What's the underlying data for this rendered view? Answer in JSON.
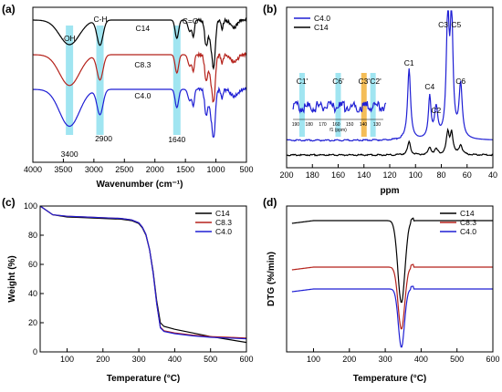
{
  "colors": {
    "C14": "#000000",
    "C8.3": "#b5221b",
    "C4.0": "#1f1fd4",
    "band": "#8fe0ee",
    "band_c3": "#f2b13a"
  },
  "chart_data": [
    {
      "panel": "(a)",
      "type": "line",
      "xlabel": "Wavenumber (cm⁻¹)",
      "ylabel": "",
      "xlim": [
        4000,
        500
      ],
      "xticks": [
        4000,
        3500,
        3000,
        2500,
        2000,
        1500,
        1000,
        500
      ],
      "series_labels": [
        {
          "name": "C14",
          "x": 2200
        },
        {
          "name": "C8.3",
          "x": 2200
        },
        {
          "name": "C4.0",
          "x": 2200
        }
      ],
      "bands": [
        {
          "center": 3400,
          "label": "-OH"
        },
        {
          "center": 2900,
          "label": "C-H"
        },
        {
          "center": 1640,
          "label": "C=O"
        }
      ],
      "peak_labels": [
        "3400",
        "2900",
        "1640"
      ],
      "peaks": [
        3400,
        2900,
        1640,
        1060
      ]
    },
    {
      "panel": "(b)",
      "type": "line",
      "xlabel": "ppm",
      "ylabel": "",
      "xlim": [
        200,
        40
      ],
      "xticks": [
        200,
        180,
        160,
        140,
        120,
        100,
        80,
        60,
        40
      ],
      "legend": [
        "C4.0",
        "C14"
      ],
      "legend_position": "top-left",
      "peaks": [
        {
          "label": "C1",
          "ppm": 105
        },
        {
          "label": "C4",
          "ppm": 89
        },
        {
          "label": "C2",
          "ppm": 84
        },
        {
          "label": "C3",
          "ppm": 75
        },
        {
          "label": "C5",
          "ppm": 72
        },
        {
          "label": "C6",
          "ppm": 65
        }
      ],
      "inset_labels": [
        "C1'",
        "C6'",
        "C3'",
        "C2'"
      ],
      "inset_ticks": [
        "190",
        "180",
        "170",
        "160",
        "150",
        "140",
        "130"
      ],
      "inset_xlabel": "f1 (ppm)"
    },
    {
      "panel": "(c)",
      "type": "line",
      "xlabel": "Temperature (°C)",
      "ylabel": "Weight (%)",
      "xlim": [
        25,
        600
      ],
      "ylim": [
        0,
        100
      ],
      "xticks": [
        100,
        200,
        300,
        400,
        500,
        600
      ],
      "yticks": [
        0,
        20,
        40,
        60,
        80,
        100
      ],
      "legend": [
        "C14",
        "C8.3",
        "C4.0"
      ],
      "legend_position": "top-right",
      "series": [
        {
          "name": "C14",
          "x": [
            25,
            60,
            100,
            150,
            200,
            250,
            280,
            300,
            310,
            320,
            330,
            340,
            350,
            360,
            370,
            400,
            450,
            500,
            550,
            600
          ],
          "y": [
            100,
            94,
            92.5,
            92,
            91.5,
            91,
            90,
            88,
            85,
            80,
            70,
            55,
            35,
            20,
            17.5,
            15.5,
            13,
            10.5,
            8.5,
            6.5
          ]
        },
        {
          "name": "C8.3",
          "x": [
            25,
            60,
            100,
            150,
            200,
            250,
            280,
            300,
            310,
            320,
            330,
            340,
            350,
            360,
            370,
            400,
            450,
            500,
            550,
            600
          ],
          "y": [
            100,
            94,
            93,
            92.5,
            92,
            91.5,
            90.5,
            88.5,
            85.5,
            80.5,
            70,
            54,
            33,
            17,
            14.5,
            13,
            11.5,
            10.5,
            10,
            9.5
          ]
        },
        {
          "name": "C4.0",
          "x": [
            25,
            60,
            100,
            150,
            200,
            250,
            280,
            300,
            310,
            320,
            330,
            340,
            350,
            360,
            370,
            400,
            450,
            500,
            550,
            600
          ],
          "y": [
            100,
            94,
            93,
            92.5,
            92,
            91.5,
            90.5,
            88.5,
            85.5,
            80.5,
            70,
            54,
            33,
            16.5,
            14,
            12.5,
            11,
            10,
            9.5,
            9
          ]
        }
      ]
    },
    {
      "panel": "(d)",
      "type": "line",
      "xlabel": "Temperature (°C)",
      "ylabel": "DTG (%/min)",
      "xlim": [
        25,
        600
      ],
      "xticks": [
        100,
        200,
        300,
        400,
        500,
        600
      ],
      "legend": [
        "C14",
        "C8.3",
        "C4.0"
      ],
      "legend_position": "top-right",
      "peak_temperature": 345
    }
  ]
}
